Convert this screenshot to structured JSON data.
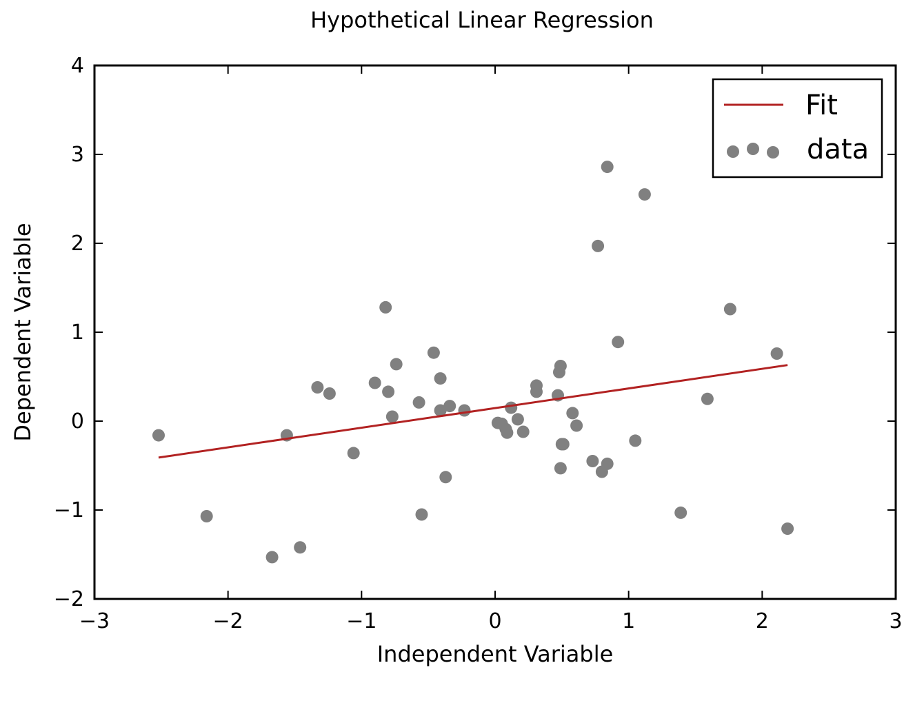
{
  "chart_data": {
    "type": "scatter",
    "title": "Hypothetical Linear Regression",
    "xlabel": "Independent Variable",
    "ylabel": "Dependent Variable",
    "xlim": [
      -3,
      3
    ],
    "ylim": [
      -2,
      4
    ],
    "xticks": [
      -3,
      -2,
      -1,
      0,
      1,
      2,
      3
    ],
    "yticks": [
      -2,
      -1,
      0,
      1,
      2,
      3,
      4
    ],
    "xtick_labels": [
      "−3",
      "−2",
      "−1",
      "0",
      "1",
      "2",
      "3"
    ],
    "ytick_labels": [
      "−2",
      "−1",
      "0",
      "1",
      "2",
      "3",
      "4"
    ],
    "grid": false,
    "legend_position": "top-right",
    "colors": {
      "data": "#808080",
      "fit": "#b22222"
    },
    "series": [
      {
        "name": "Fit",
        "type": "line",
        "x": [
          -2.52,
          2.19
        ],
        "y": [
          -0.41,
          0.63
        ]
      },
      {
        "name": "data",
        "type": "scatter",
        "x": [
          -2.52,
          -2.16,
          -1.67,
          -1.56,
          -1.46,
          -1.33,
          -1.24,
          -1.06,
          -0.9,
          -0.82,
          -0.8,
          -0.77,
          -0.74,
          -0.57,
          -0.55,
          -0.46,
          -0.41,
          -0.41,
          -0.37,
          -0.34,
          -0.23,
          0.02,
          0.05,
          0.08,
          0.09,
          0.12,
          0.17,
          0.21,
          0.31,
          0.31,
          0.47,
          0.48,
          0.49,
          0.49,
          0.5,
          0.51,
          0.58,
          0.61,
          0.73,
          0.77,
          0.8,
          0.84,
          0.84,
          0.92,
          1.05,
          1.12,
          1.39,
          1.59,
          1.76,
          2.11,
          2.19
        ],
        "y": [
          -0.16,
          -1.07,
          -1.53,
          -0.16,
          -1.42,
          0.38,
          0.31,
          -0.36,
          0.43,
          1.28,
          0.33,
          0.05,
          0.64,
          0.21,
          -1.05,
          0.77,
          0.12,
          0.48,
          -0.63,
          0.17,
          0.12,
          -0.02,
          -0.03,
          -0.09,
          -0.13,
          0.15,
          0.02,
          -0.12,
          0.33,
          0.4,
          0.29,
          0.55,
          -0.53,
          0.62,
          -0.26,
          -0.26,
          0.09,
          -0.05,
          -0.45,
          1.97,
          -0.57,
          -0.48,
          2.86,
          0.89,
          -0.22,
          2.55,
          -1.03,
          0.25,
          1.26,
          0.76,
          -1.21
        ]
      }
    ]
  }
}
